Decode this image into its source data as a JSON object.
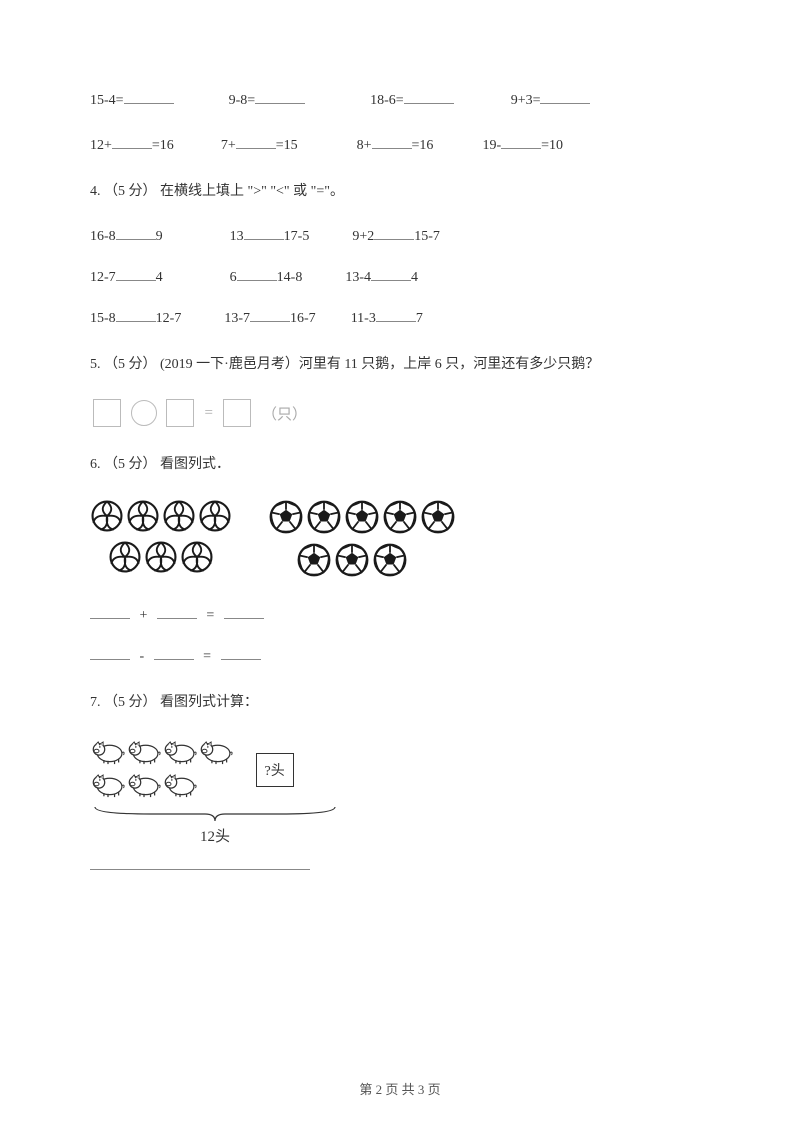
{
  "arith": {
    "r1": {
      "a": "15-4=",
      "b": "9-8=",
      "c": "18-6=",
      "d": "9+3="
    },
    "r2": {
      "a1": "12+",
      "a2": "=16",
      "b1": "7+",
      "b2": "=15",
      "c1": "8+",
      "c2": "=16",
      "d1": "19-",
      "d2": "=10"
    }
  },
  "q4": {
    "stem": "4. （5 分） 在横线上填上 \">\" \"<\" 或 \"=\"。",
    "r1": {
      "a1": "16-8",
      "a2": "9",
      "b1": "13",
      "b2": "17-5",
      "c1": "9+2",
      "c2": "15-7"
    },
    "r2": {
      "a1": "12-7",
      "a2": "4",
      "b1": "6",
      "b2": "14-8",
      "c1": "13-4",
      "c2": "4"
    },
    "r3": {
      "a1": "15-8",
      "a2": "12-7",
      "b1": "13-7",
      "b2": "16-7",
      "c1": "11-3",
      "c2": "7"
    }
  },
  "q5": {
    "stem": "5. （5 分） (2019 一下·鹿邑月考）河里有 11 只鹅，上岸 6 只，河里还有多少只鹅？",
    "unit": "（只）",
    "eq": "="
  },
  "q6": {
    "stem": "6. （5 分） 看图列式．",
    "plus": "+",
    "minus": "-",
    "eq": "="
  },
  "q7": {
    "stem": "7. （5 分） 看图列式计算：",
    "unknown": "?头",
    "total": "12头"
  },
  "footer": "第 2 页 共 3 页",
  "style": {
    "blank_color": "#888888",
    "box_border": "#bbbbbb",
    "text_color": "#333333",
    "ball_stroke": "#1a1a1a",
    "soccer_fill": "#1a1a1a"
  }
}
